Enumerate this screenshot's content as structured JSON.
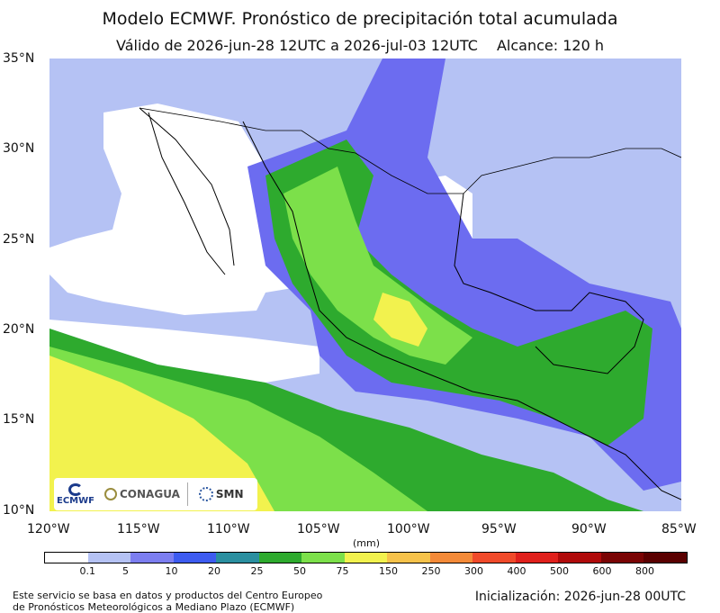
{
  "header": {
    "title": "Modelo ECMWF. Pronóstico de precipitación total acumulada",
    "valid": "Válido de 2026-jun-28 12UTC a 2026-jul-03 12UTC",
    "range": "Alcance: 120 h"
  },
  "axes": {
    "lat_labels": [
      "35°N",
      "30°N",
      "25°N",
      "20°N",
      "15°N",
      "10°N"
    ],
    "lon_labels": [
      "120°W",
      "115°W",
      "110°W",
      "105°W",
      "100°W",
      "95°W",
      "90°W",
      "85°W"
    ]
  },
  "colorbar": {
    "units": "(mm)",
    "ticks": [
      "0.1",
      "5",
      "10",
      "20",
      "25",
      "50",
      "75",
      "150",
      "250",
      "300",
      "400",
      "500",
      "600",
      "800"
    ],
    "colors": [
      "#ffffff",
      "#b5c2f4",
      "#7c7ef0",
      "#3d5bf0",
      "#2a8fa0",
      "#2eaa2e",
      "#7ce04a",
      "#f2f24e",
      "#f6c24a",
      "#f48a38",
      "#f04a2a",
      "#e0201c",
      "#b00a0a",
      "#7a0404",
      "#5a0000"
    ]
  },
  "logos": {
    "ecmwf": "ECMWF",
    "conagua": "CONAGUA",
    "smn": "SMN"
  },
  "footer": {
    "source_line1": "Este servicio se basa en datos y productos del Centro Europeo",
    "source_line2": "de Pronósticos Meteorológicos a Mediano Plazo (ECMWF)",
    "init": "Inicialización: 2026-jun-28 00UTC"
  }
}
